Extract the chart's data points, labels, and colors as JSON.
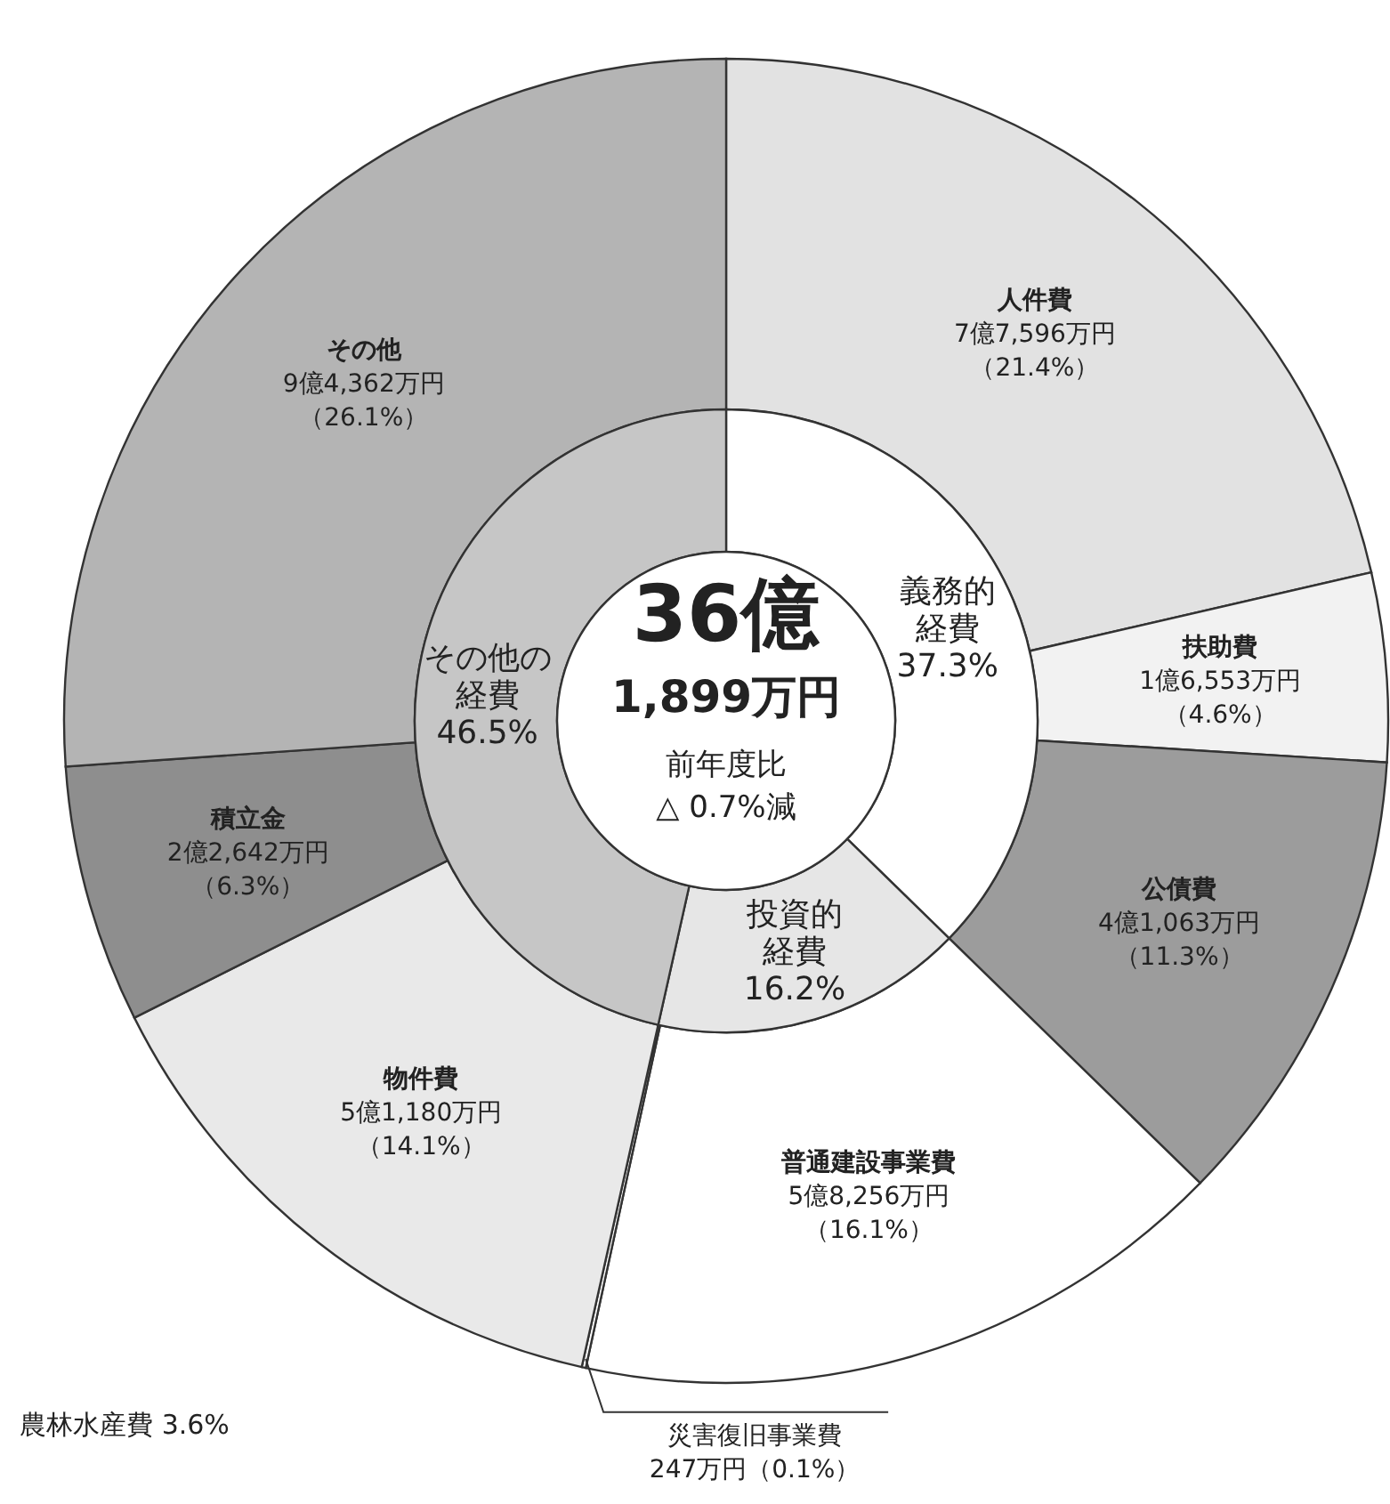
{
  "chart_data": [
    {
      "type": "donut",
      "categories": [
        "人件費",
        "扶助費",
        "公債費",
        "普通建設事業費",
        "災害復旧事業費",
        "物件費",
        "積立金",
        "その他"
      ],
      "values": [
        21.4,
        4.6,
        11.3,
        16.1,
        0.1,
        14.1,
        6.3,
        26.1
      ],
      "value_labels": [
        "7億7,596万円（21.4%）",
        "1億6,553万円（4.6%）",
        "4億1,063万円（11.3%）",
        "5億8,256万円（16.1%）",
        "247万円（0.1%）",
        "5億1,180万円（14.1%）",
        "2億2,642万円（6.3%）",
        "9億4,362万円（26.1%）"
      ],
      "colors": [
        "#e2e2e2",
        "#f2f2f2",
        "#9c9c9c",
        "#ffffff",
        "#ffffff",
        "#e9e9e9",
        "#8e8e8e",
        "#b4b4b4"
      ],
      "annotations": [
        "農林水産費 3.6%"
      ]
    },
    {
      "type": "donut",
      "categories": [
        "義務的経費",
        "投資的経費",
        "その他の経費"
      ],
      "values": [
        37.3,
        16.2,
        46.5
      ],
      "value_labels": [
        "37.3%",
        "16.2%",
        "46.5%"
      ],
      "colors": [
        "#ffffff",
        "#e6e6e6",
        "#c6c6c6"
      ],
      "annotations": [
        "36億",
        "1,899万円",
        "前年度比",
        "△ 0.7%減"
      ]
    }
  ]
}
